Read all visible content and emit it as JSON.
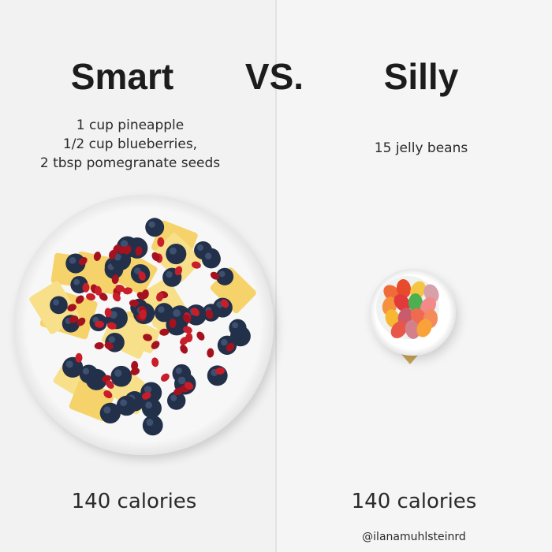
{
  "header": {
    "left_title": "Smart",
    "versus": "VS.",
    "right_title": "Silly"
  },
  "left": {
    "description": [
      "1 cup pineapple",
      "1/2 cup blueberries,",
      "2 tbsp pomegranate seeds"
    ],
    "calories": "140 calories"
  },
  "right": {
    "description": [
      "15 jelly beans"
    ],
    "calories": "140 calories"
  },
  "credit": "@ilanamuhlsteinrd"
}
